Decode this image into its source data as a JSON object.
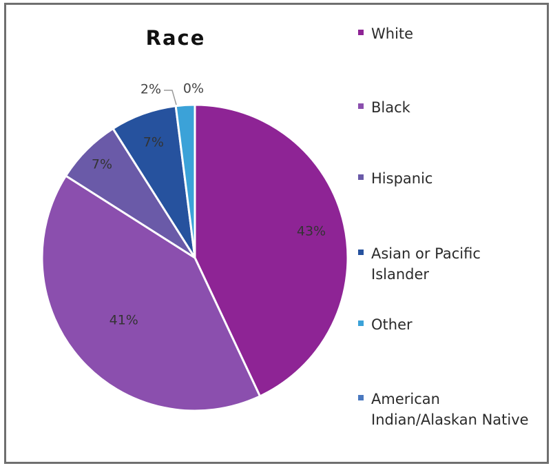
{
  "chart_data": {
    "type": "pie",
    "title": "Race",
    "legend_position": "right",
    "slices": [
      {
        "name": "White",
        "value": 43,
        "label": "43%",
        "color": "#8e2495"
      },
      {
        "name": "Black",
        "value": 41,
        "label": "41%",
        "color": "#8b4fae"
      },
      {
        "name": "Hispanic",
        "value": 7,
        "label": "7%",
        "color": "#6a5aa8"
      },
      {
        "name": "Asian or Pacific Islander",
        "value": 7,
        "label": "7%",
        "color": "#26529e"
      },
      {
        "name": "Other",
        "value": 2,
        "label": "2%",
        "color": "#3ba2d8"
      },
      {
        "name": "American Indian/Alaskan Native",
        "value": 0,
        "label": "0%",
        "color": "#4a78bf"
      }
    ]
  }
}
